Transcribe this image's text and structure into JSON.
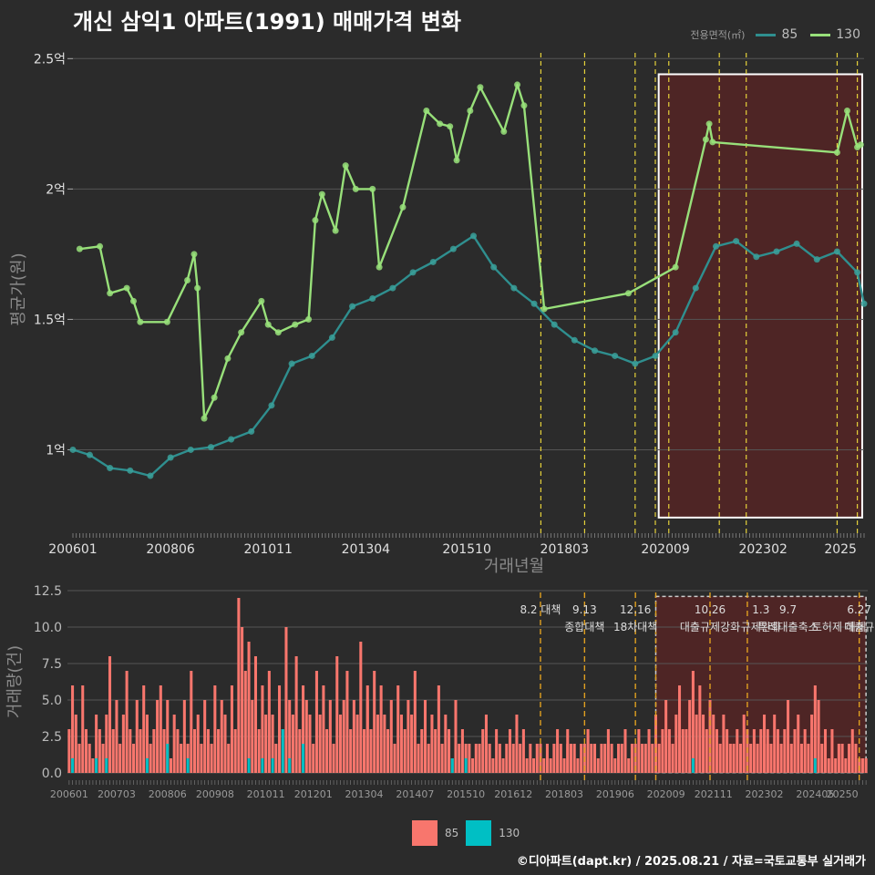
{
  "title": "개신 삼익1 아파트(1991) 매매가격 변화",
  "caption": "©디아파트(dapt.kr) / 2025.08.21 / 자료=국토교통부 실거래가",
  "colors": {
    "background": "#2b2b2b",
    "series85_line": "#2f8f8f",
    "series85_point": "#3aa09a",
    "series130": "#98e07a",
    "bar85": "#f8766d",
    "bar130": "#00bfc4",
    "policy_line": "#e6d23a",
    "highlight_fill": "#6b2020",
    "grid": "#555555",
    "axis_text": "#e0e0e0",
    "axis_title": "#8a8a8a"
  },
  "legend_top": {
    "title": "전용면적(㎡)",
    "items": [
      {
        "label": "85",
        "color": "#2f8f8f"
      },
      {
        "label": "130",
        "color": "#98e07a"
      }
    ]
  },
  "legend_bottom": {
    "items": [
      {
        "label": "85",
        "color": "#f8766d"
      },
      {
        "label": "130",
        "color": "#00bfc4"
      }
    ]
  },
  "chart_data": [
    {
      "type": "line",
      "xlabel": "거래년월",
      "ylabel": "평균가(원)",
      "xlim": [
        "2006-01",
        "2025-08"
      ],
      "ylim": [
        0.68,
        2.55
      ],
      "x_ticks": [
        "200601",
        "200806",
        "201011",
        "201304",
        "201510",
        "201803",
        "202009",
        "202302",
        "2025"
      ],
      "y_ticks": [
        {
          "value": 1.0,
          "label": "1억"
        },
        {
          "value": 1.5,
          "label": "1.5억"
        },
        {
          "value": 2.0,
          "label": "2억"
        },
        {
          "value": 2.5,
          "label": "2.5억"
        }
      ],
      "grid": true,
      "highlight": {
        "x_from": "2020-07",
        "x_to": "2025-08",
        "y_from": 0.74,
        "y_to": 2.44
      },
      "policy_dates": [
        "2017-08",
        "2018-09",
        "2019-12",
        "2020-06",
        "2020-10",
        "2022-01",
        "2022-09",
        "2024-12",
        "2025-06"
      ],
      "series": [
        {
          "name": "85",
          "points": [
            [
              "2006-01",
              1.0
            ],
            [
              "2006-06",
              0.98
            ],
            [
              "2006-12",
              0.93
            ],
            [
              "2007-06",
              0.92
            ],
            [
              "2007-12",
              0.9
            ],
            [
              "2008-06",
              0.97
            ],
            [
              "2008-12",
              1.0
            ],
            [
              "2009-06",
              1.01
            ],
            [
              "2009-12",
              1.04
            ],
            [
              "2010-06",
              1.07
            ],
            [
              "2010-12",
              1.17
            ],
            [
              "2011-06",
              1.33
            ],
            [
              "2011-12",
              1.36
            ],
            [
              "2012-06",
              1.43
            ],
            [
              "2012-12",
              1.55
            ],
            [
              "2013-06",
              1.58
            ],
            [
              "2013-12",
              1.62
            ],
            [
              "2014-06",
              1.68
            ],
            [
              "2014-12",
              1.72
            ],
            [
              "2015-06",
              1.77
            ],
            [
              "2015-12",
              1.82
            ],
            [
              "2016-06",
              1.7
            ],
            [
              "2016-12",
              1.62
            ],
            [
              "2017-06",
              1.56
            ],
            [
              "2017-12",
              1.48
            ],
            [
              "2018-06",
              1.42
            ],
            [
              "2018-12",
              1.38
            ],
            [
              "2019-06",
              1.36
            ],
            [
              "2019-12",
              1.33
            ],
            [
              "2020-06",
              1.36
            ],
            [
              "2020-12",
              1.45
            ],
            [
              "2021-06",
              1.62
            ],
            [
              "2021-12",
              1.78
            ],
            [
              "2022-06",
              1.8
            ],
            [
              "2022-12",
              1.74
            ],
            [
              "2023-06",
              1.76
            ],
            [
              "2023-12",
              1.79
            ],
            [
              "2024-06",
              1.73
            ],
            [
              "2024-12",
              1.76
            ],
            [
              "2025-06",
              1.68
            ],
            [
              "2025-08",
              1.56
            ]
          ]
        },
        {
          "name": "130",
          "points": [
            [
              "2006-03",
              1.77
            ],
            [
              "2006-09",
              1.78
            ],
            [
              "2006-12",
              1.6
            ],
            [
              "2007-05",
              1.62
            ],
            [
              "2007-07",
              1.57
            ],
            [
              "2007-09",
              1.49
            ],
            [
              "2008-05",
              1.49
            ],
            [
              "2008-11",
              1.65
            ],
            [
              "2009-01",
              1.75
            ],
            [
              "2009-02",
              1.62
            ],
            [
              "2009-04",
              1.12
            ],
            [
              "2009-07",
              1.2
            ],
            [
              "2009-11",
              1.35
            ],
            [
              "2010-03",
              1.45
            ],
            [
              "2010-09",
              1.57
            ],
            [
              "2010-11",
              1.48
            ],
            [
              "2011-02",
              1.45
            ],
            [
              "2011-07",
              1.48
            ],
            [
              "2011-11",
              1.5
            ],
            [
              "2012-01",
              1.88
            ],
            [
              "2012-03",
              1.98
            ],
            [
              "2012-07",
              1.84
            ],
            [
              "2012-10",
              2.09
            ],
            [
              "2013-01",
              2.0
            ],
            [
              "2013-06",
              2.0
            ],
            [
              "2013-08",
              1.7
            ],
            [
              "2014-03",
              1.93
            ],
            [
              "2014-10",
              2.3
            ],
            [
              "2015-02",
              2.25
            ],
            [
              "2015-05",
              2.24
            ],
            [
              "2015-07",
              2.11
            ],
            [
              "2015-11",
              2.3
            ],
            [
              "2016-02",
              2.39
            ],
            [
              "2016-09",
              2.22
            ],
            [
              "2017-01",
              2.4
            ],
            [
              "2017-03",
              2.32
            ],
            [
              "2017-09",
              1.54
            ],
            [
              "2019-10",
              1.6
            ],
            [
              "2020-12",
              1.7
            ],
            [
              "2021-09",
              2.19
            ],
            [
              "2021-10",
              2.25
            ],
            [
              "2021-11",
              2.18
            ],
            [
              "2024-12",
              2.14
            ],
            [
              "2025-03",
              2.3
            ],
            [
              "2025-06",
              2.16
            ],
            [
              "2025-07",
              2.17
            ]
          ]
        }
      ]
    },
    {
      "type": "bar",
      "xlabel": "",
      "ylabel": "거래량(건)",
      "ylim": [
        0,
        12.5
      ],
      "y_ticks": [
        0,
        2.5,
        5,
        7.5,
        10,
        12.5
      ],
      "x_ticks": [
        "200601",
        "200703",
        "200806",
        "200908",
        "201011",
        "201201",
        "201304",
        "201407",
        "201510",
        "201612",
        "201803",
        "201906",
        "202009",
        "202111",
        "202302",
        "202405",
        "20250"
      ],
      "policy_dates": [
        "2017-08",
        "2018-09",
        "2019-12",
        "2020-06",
        "2021-10",
        "2022-09",
        "2025-06"
      ],
      "highlight": {
        "x_from": "2020-06",
        "x_to": "2025-08"
      },
      "annotations": [
        {
          "date": "2017-08",
          "line1": "8.2 대책",
          "line2": ""
        },
        {
          "date": "2018-09",
          "line1": "9.13",
          "line2": "종합대책"
        },
        {
          "date": "2019-12",
          "line1": "12.16",
          "line2": "18차대책"
        },
        {
          "date": "2021-10",
          "line1": "10.26",
          "line2": "대출규제강화"
        },
        {
          "date": "2023-01",
          "line1": "1.3",
          "line2": "규제완화"
        },
        {
          "date": "2023-09",
          "line1": "9.7",
          "line2": "특례대출축소"
        },
        {
          "date": "2024-12",
          "line1": "",
          "line2": "토허제 해제"
        },
        {
          "date": "2025-06",
          "line1": "6.27",
          "line2": "대출규"
        }
      ],
      "series": [
        {
          "name": "85",
          "values": [
            3,
            6,
            4,
            2,
            6,
            3,
            2,
            1,
            4,
            3,
            2,
            4,
            8,
            3,
            5,
            2,
            4,
            7,
            3,
            2,
            5,
            3,
            6,
            4,
            2,
            3,
            5,
            6,
            3,
            2,
            5,
            1,
            4,
            3,
            2,
            5,
            2,
            7,
            3,
            4,
            2,
            5,
            3,
            2,
            6,
            3,
            5,
            4,
            2,
            6,
            3,
            12,
            10,
            7,
            9,
            5,
            8,
            3,
            6,
            4,
            7,
            4,
            2,
            6,
            3,
            10,
            5,
            4,
            8,
            3,
            6,
            5,
            4,
            2,
            7,
            4,
            6,
            3,
            5,
            2,
            8,
            4,
            5,
            7,
            3,
            5,
            4,
            9,
            3,
            6,
            5,
            3,
            7,
            4,
            6,
            4,
            3,
            5,
            2,
            6,
            4,
            3,
            5,
            4,
            7,
            2,
            3,
            5,
            2,
            4,
            3,
            6,
            2,
            4,
            3,
            1,
            5,
            2,
            3,
            2,
            2,
            1,
            2,
            2,
            3,
            4,
            2,
            1,
            3,
            2,
            1,
            2,
            3,
            2,
            4,
            2,
            3,
            1,
            2,
            1,
            2,
            2,
            1,
            2,
            1,
            2,
            3,
            2,
            1,
            2,
            3,
            2,
            2,
            1,
            2,
            2,
            3,
            2,
            2,
            1,
            2,
            2,
            3,
            2,
            1,
            2,
            2,
            3,
            1,
            2,
            2,
            3,
            2,
            2,
            3,
            2,
            4,
            2,
            3,
            5,
            3,
            2,
            4,
            6,
            3,
            3,
            5,
            7,
            4,
            6,
            4,
            3,
            5,
            4,
            3,
            2,
            4,
            3,
            2,
            2,
            3,
            2,
            4,
            3,
            2,
            3,
            2,
            3,
            4,
            2,
            3,
            2,
            4,
            3,
            2,
            3,
            5,
            2,
            3,
            4,
            2,
            3,
            2,
            4,
            6,
            5,
            2,
            3,
            1,
            3,
            1,
            2,
            2,
            1,
            2,
            3,
            2,
            1,
            1,
            1
          ]
        },
        {
          "name": "130",
          "values": [
            0,
            1,
            0,
            0,
            0,
            0,
            0,
            0,
            1,
            0,
            0,
            1,
            0,
            0,
            0,
            0,
            0,
            0,
            0,
            0,
            0,
            0,
            0,
            1,
            0,
            0,
            0,
            0,
            0,
            2,
            0,
            0,
            0,
            0,
            0,
            0,
            1,
            0,
            0,
            0,
            0,
            0,
            0,
            0,
            0,
            0,
            0,
            0,
            0,
            0,
            0,
            0,
            0,
            0,
            1,
            0,
            0,
            0,
            1,
            0,
            0,
            1,
            0,
            0,
            3,
            0,
            1,
            0,
            0,
            0,
            2,
            0,
            0,
            0,
            0,
            0,
            0,
            0,
            0,
            0,
            0,
            0,
            0,
            0,
            0,
            0,
            0,
            0,
            0,
            0,
            0,
            0,
            0,
            0,
            0,
            0,
            0,
            0,
            0,
            0,
            0,
            0,
            0,
            0,
            0,
            0,
            0,
            0,
            0,
            0,
            0,
            0,
            0,
            0,
            0,
            1,
            0,
            0,
            0,
            1,
            0,
            0,
            0,
            0,
            0,
            0,
            0,
            0,
            0,
            0,
            0,
            0,
            0,
            0,
            0,
            0,
            0,
            0,
            0,
            0,
            0,
            0,
            0,
            0,
            0,
            0,
            0,
            0,
            0,
            0,
            0,
            0,
            0,
            0,
            0,
            0,
            0,
            0,
            0,
            0,
            0,
            0,
            0,
            0,
            0,
            0,
            0,
            0,
            0,
            0,
            0,
            0,
            0,
            0,
            0,
            0,
            0,
            0,
            0,
            0,
            0,
            0,
            0,
            0,
            0,
            0,
            0,
            1,
            0,
            0,
            0,
            0,
            0,
            0,
            0,
            0,
            0,
            0,
            0,
            0,
            0,
            0,
            0,
            0,
            0,
            0,
            0,
            0,
            0,
            0,
            0,
            0,
            0,
            0,
            0,
            0,
            0,
            0,
            0,
            0,
            0,
            0,
            0,
            0,
            1,
            0,
            0,
            0,
            0,
            0,
            0,
            0,
            0,
            0,
            0,
            0,
            0,
            0,
            0,
            0
          ]
        }
      ]
    }
  ]
}
